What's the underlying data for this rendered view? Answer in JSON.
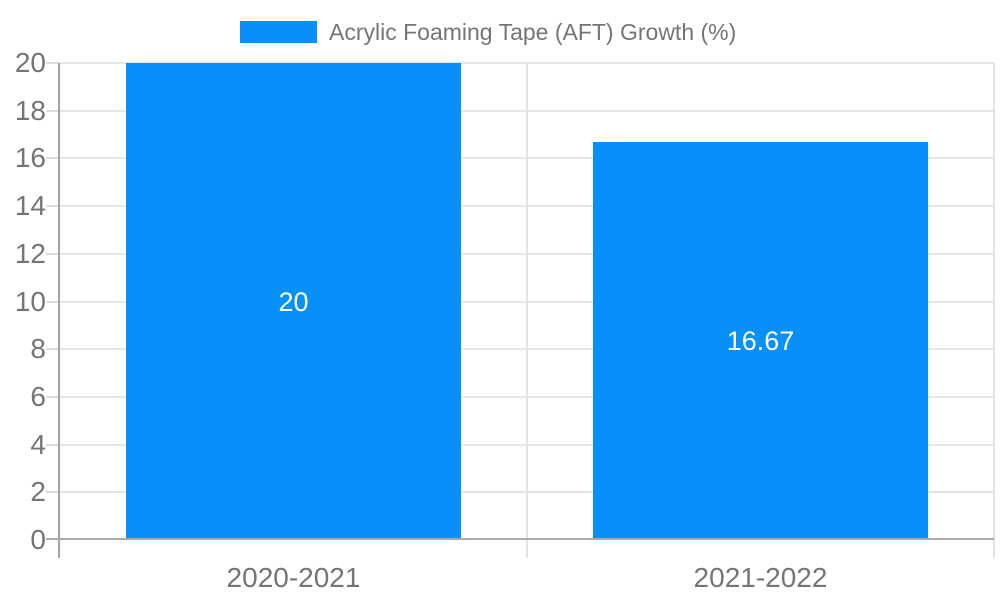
{
  "chart_data": {
    "type": "bar",
    "title": "Acrylic Foaming Tape (AFT) Growth (%)",
    "categories": [
      "2020-2021",
      "2021-2022"
    ],
    "series": [
      {
        "name": "Acrylic Foaming Tape (AFT) Growth (%)",
        "values": [
          20,
          16.67
        ],
        "data_labels": [
          "20",
          "16.67"
        ],
        "color": "#0890FA"
      }
    ],
    "xlabel": "",
    "ylabel": "",
    "ylim": [
      0,
      20
    ],
    "ytick_step": 2,
    "yticks": [
      0,
      2,
      4,
      6,
      8,
      10,
      12,
      14,
      16,
      18,
      20
    ],
    "grid": true,
    "legend_position": "top",
    "data_label_color": "#ffffff",
    "colors": {
      "bar": "#0890FA",
      "gridline": "#e6e6e6",
      "axis_line": "#a9a9a9",
      "tick": "#dcdcdc",
      "text": "#757575",
      "background": "#ffffff"
    }
  }
}
